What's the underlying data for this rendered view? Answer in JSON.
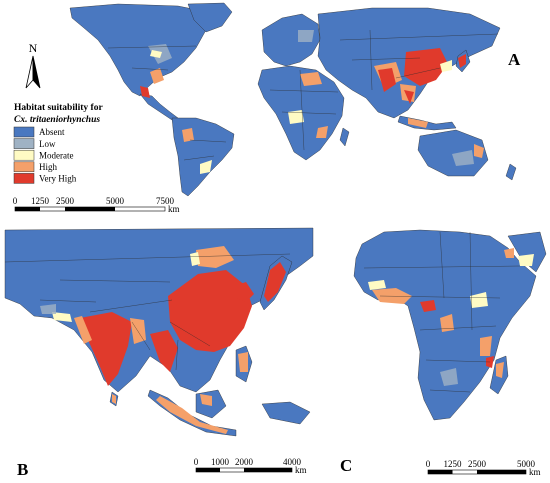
{
  "panels": {
    "a": {
      "label": "A"
    },
    "b": {
      "label": "B"
    },
    "c": {
      "label": "C"
    }
  },
  "north_arrow": {
    "label": "N"
  },
  "legend": {
    "title_line1": "Habitat suitability for",
    "title_line2": "Cx. tritaeniorhynchus",
    "items": [
      {
        "label": "Absent",
        "color": "#4a78c0"
      },
      {
        "label": "Low",
        "color": "#9fb2c4"
      },
      {
        "label": "Moderate",
        "color": "#fffbc4"
      },
      {
        "label": "High",
        "color": "#f4a06a"
      },
      {
        "label": "Very High",
        "color": "#e03a2c"
      }
    ]
  },
  "scalebars": {
    "a": {
      "ticks": [
        "0",
        "1250",
        "2500",
        "5000",
        "7500"
      ],
      "unit": "km"
    },
    "b": {
      "ticks": [
        "0",
        "1000",
        "2000",
        "4000"
      ],
      "unit": "km"
    },
    "c": {
      "ticks": [
        "0",
        "1250",
        "2500",
        "5000"
      ],
      "unit": "km"
    }
  },
  "colors": {
    "ocean": "#ffffff",
    "border": "#2a2a2a"
  }
}
